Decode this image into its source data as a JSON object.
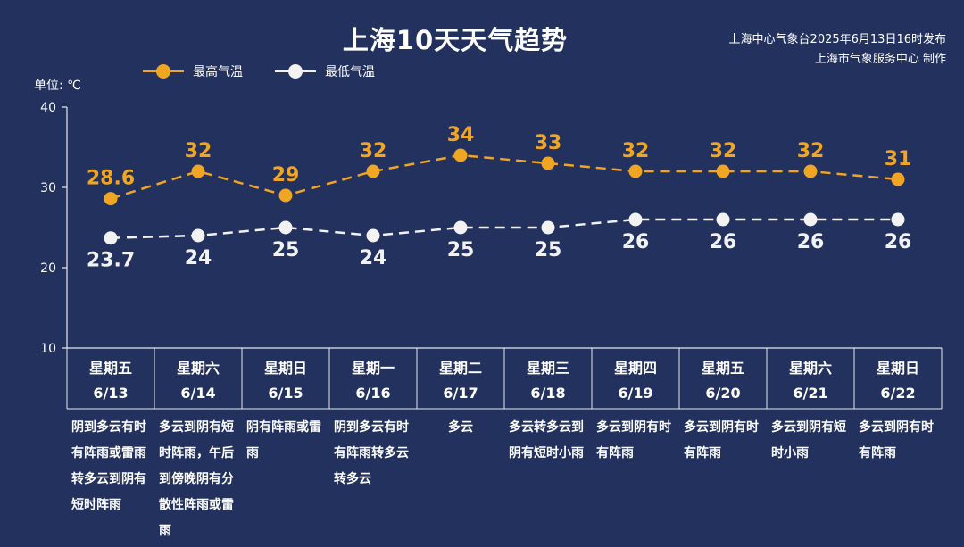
{
  "title": "上海10天天气趋势",
  "source": {
    "line1": "上海中心气象台2025年6月13日16时发布",
    "line2": "上海市气象服务中心 制作"
  },
  "unit_label": "单位: ℃",
  "colors": {
    "high": "#f0a623",
    "low": "#f2f2f2",
    "background": "#23315f",
    "axis": "#e8e8e8"
  },
  "chart_data": {
    "type": "line",
    "ylim": [
      10,
      40
    ],
    "yticks": [
      10,
      20,
      30,
      40
    ],
    "categories": [
      "6/13",
      "6/14",
      "6/15",
      "6/16",
      "6/17",
      "6/18",
      "6/19",
      "6/20",
      "6/21",
      "6/22"
    ],
    "series": [
      {
        "name": "最高气温",
        "values": [
          28.6,
          32,
          29,
          32,
          34,
          33,
          32,
          32,
          32,
          31
        ],
        "labels": [
          "28.6",
          "32",
          "29",
          "32",
          "34",
          "33",
          "32",
          "32",
          "32",
          "31"
        ]
      },
      {
        "name": "最低气温",
        "values": [
          23.7,
          24,
          25,
          24,
          25,
          25,
          26,
          26,
          26,
          26
        ],
        "labels": [
          "23.7",
          "24",
          "25",
          "24",
          "25",
          "25",
          "26",
          "26",
          "26",
          "26"
        ]
      }
    ]
  },
  "days": [
    {
      "weekday": "星期五",
      "date": "6/13",
      "weather": "阴到多云有时有阵雨或雷雨转多云到阴有短时阵雨"
    },
    {
      "weekday": "星期六",
      "date": "6/14",
      "weather": "多云到阴有短时阵雨，午后到傍晚阴有分散性阵雨或雷雨"
    },
    {
      "weekday": "星期日",
      "date": "6/15",
      "weather": "阴有阵雨或雷雨"
    },
    {
      "weekday": "星期一",
      "date": "6/16",
      "weather": "阴到多云有时有阵雨转多云转多云"
    },
    {
      "weekday": "星期二",
      "date": "6/17",
      "weather": "多云"
    },
    {
      "weekday": "星期三",
      "date": "6/18",
      "weather": "多云转多云到阴有短时小雨"
    },
    {
      "weekday": "星期四",
      "date": "6/19",
      "weather": "多云到阴有时有阵雨"
    },
    {
      "weekday": "星期五",
      "date": "6/20",
      "weather": "多云到阴有时有阵雨"
    },
    {
      "weekday": "星期六",
      "date": "6/21",
      "weather": "多云到阴有短时小雨"
    },
    {
      "weekday": "星期日",
      "date": "6/22",
      "weather": "多云到阴有时有阵雨"
    }
  ]
}
